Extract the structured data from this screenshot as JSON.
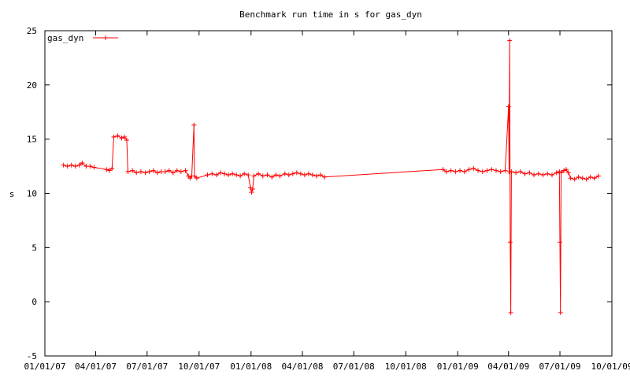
{
  "chart_data": {
    "type": "line",
    "title": "Benchmark run time in s for gas_dyn",
    "xlabel": "",
    "ylabel": "s",
    "ylim": [
      -5,
      25
    ],
    "xlim": [
      "2007-01-01",
      "2009-10-01"
    ],
    "x_ticks": [
      "01/01/07",
      "04/01/07",
      "07/01/07",
      "10/01/07",
      "01/01/08",
      "04/01/08",
      "07/01/08",
      "10/01/08",
      "01/01/09",
      "04/01/09",
      "07/01/09",
      "10/01/09"
    ],
    "y_ticks": [
      "-5",
      "0",
      "5",
      "10",
      "15",
      "20",
      "25"
    ],
    "legend_position": "top-left",
    "grid": false,
    "colors": {
      "series": "#ff0000",
      "axis": "#000000"
    },
    "series": [
      {
        "name": "gas_dyn",
        "points": [
          [
            "2007-02-03",
            12.6
          ],
          [
            "2007-02-10",
            12.5
          ],
          [
            "2007-02-17",
            12.6
          ],
          [
            "2007-02-24",
            12.5
          ],
          [
            "2007-03-03",
            12.6
          ],
          [
            "2007-03-08",
            12.8
          ],
          [
            "2007-03-15",
            12.5
          ],
          [
            "2007-03-22",
            12.5
          ],
          [
            "2007-03-29",
            12.4
          ],
          [
            "2007-04-20",
            12.2
          ],
          [
            "2007-04-25",
            12.1
          ],
          [
            "2007-04-30",
            12.3
          ],
          [
            "2007-05-03",
            15.2
          ],
          [
            "2007-05-10",
            15.3
          ],
          [
            "2007-05-17",
            15.1
          ],
          [
            "2007-05-22",
            15.2
          ],
          [
            "2007-05-26",
            14.9
          ],
          [
            "2007-05-28",
            12.0
          ],
          [
            "2007-06-05",
            12.1
          ],
          [
            "2007-06-12",
            11.9
          ],
          [
            "2007-06-20",
            12.0
          ],
          [
            "2007-06-28",
            11.9
          ],
          [
            "2007-07-05",
            12.0
          ],
          [
            "2007-07-12",
            12.1
          ],
          [
            "2007-07-19",
            11.9
          ],
          [
            "2007-07-26",
            12.0
          ],
          [
            "2007-08-02",
            12.0
          ],
          [
            "2007-08-09",
            12.1
          ],
          [
            "2007-08-16",
            11.9
          ],
          [
            "2007-08-23",
            12.1
          ],
          [
            "2007-08-30",
            12.0
          ],
          [
            "2007-09-07",
            12.1
          ],
          [
            "2007-09-12",
            11.6
          ],
          [
            "2007-09-15",
            11.4
          ],
          [
            "2007-09-18",
            11.6
          ],
          [
            "2007-09-22",
            16.3
          ],
          [
            "2007-09-23",
            11.6
          ],
          [
            "2007-09-27",
            11.4
          ],
          [
            "2007-10-16",
            11.7
          ],
          [
            "2007-10-24",
            11.8
          ],
          [
            "2007-11-01",
            11.7
          ],
          [
            "2007-11-08",
            11.9
          ],
          [
            "2007-11-15",
            11.8
          ],
          [
            "2007-11-22",
            11.7
          ],
          [
            "2007-11-29",
            11.8
          ],
          [
            "2007-12-06",
            11.7
          ],
          [
            "2007-12-13",
            11.6
          ],
          [
            "2007-12-20",
            11.8
          ],
          [
            "2007-12-27",
            11.7
          ],
          [
            "2007-12-31",
            10.5
          ],
          [
            "2008-01-02",
            10.1
          ],
          [
            "2008-01-04",
            10.4
          ],
          [
            "2008-01-06",
            11.6
          ],
          [
            "2008-01-14",
            11.8
          ],
          [
            "2008-01-22",
            11.6
          ],
          [
            "2008-01-30",
            11.7
          ],
          [
            "2008-02-07",
            11.5
          ],
          [
            "2008-02-14",
            11.7
          ],
          [
            "2008-02-21",
            11.6
          ],
          [
            "2008-03-01",
            11.8
          ],
          [
            "2008-03-08",
            11.7
          ],
          [
            "2008-03-15",
            11.8
          ],
          [
            "2008-03-22",
            11.9
          ],
          [
            "2008-03-29",
            11.8
          ],
          [
            "2008-04-05",
            11.7
          ],
          [
            "2008-04-12",
            11.8
          ],
          [
            "2008-04-19",
            11.7
          ],
          [
            "2008-04-26",
            11.6
          ],
          [
            "2008-05-03",
            11.7
          ],
          [
            "2008-05-10",
            11.5
          ],
          [
            "2008-12-06",
            12.2
          ],
          [
            "2008-12-12",
            12.0
          ],
          [
            "2008-12-20",
            12.1
          ],
          [
            "2008-12-28",
            12.0
          ],
          [
            "2009-01-05",
            12.1
          ],
          [
            "2009-01-13",
            12.0
          ],
          [
            "2009-01-21",
            12.2
          ],
          [
            "2009-01-29",
            12.3
          ],
          [
            "2009-02-06",
            12.1
          ],
          [
            "2009-02-14",
            12.0
          ],
          [
            "2009-02-22",
            12.1
          ],
          [
            "2009-03-02",
            12.2
          ],
          [
            "2009-03-10",
            12.1
          ],
          [
            "2009-03-18",
            12.0
          ],
          [
            "2009-03-26",
            12.1
          ],
          [
            "2009-04-01",
            18.0
          ],
          [
            "2009-04-02",
            12.0
          ],
          [
            "2009-04-03",
            24.1
          ],
          [
            "2009-04-04",
            5.5
          ],
          [
            "2009-04-05",
            -1.0
          ],
          [
            "2009-04-06",
            12.0
          ],
          [
            "2009-04-14",
            11.9
          ],
          [
            "2009-04-22",
            12.0
          ],
          [
            "2009-04-30",
            11.8
          ],
          [
            "2009-05-08",
            11.9
          ],
          [
            "2009-05-16",
            11.7
          ],
          [
            "2009-05-24",
            11.8
          ],
          [
            "2009-06-01",
            11.7
          ],
          [
            "2009-06-09",
            11.8
          ],
          [
            "2009-06-17",
            11.7
          ],
          [
            "2009-06-25",
            11.9
          ],
          [
            "2009-06-30",
            12.0
          ],
          [
            "2009-07-01",
            5.5
          ],
          [
            "2009-07-02",
            -1.0
          ],
          [
            "2009-07-03",
            11.9
          ],
          [
            "2009-07-08",
            12.1
          ],
          [
            "2009-07-12",
            12.2
          ],
          [
            "2009-07-16",
            11.9
          ],
          [
            "2009-07-20",
            11.4
          ],
          [
            "2009-07-27",
            11.3
          ],
          [
            "2009-08-03",
            11.5
          ],
          [
            "2009-08-10",
            11.4
          ],
          [
            "2009-08-17",
            11.3
          ],
          [
            "2009-08-24",
            11.5
          ],
          [
            "2009-08-31",
            11.4
          ],
          [
            "2009-09-07",
            11.6
          ]
        ]
      }
    ]
  }
}
